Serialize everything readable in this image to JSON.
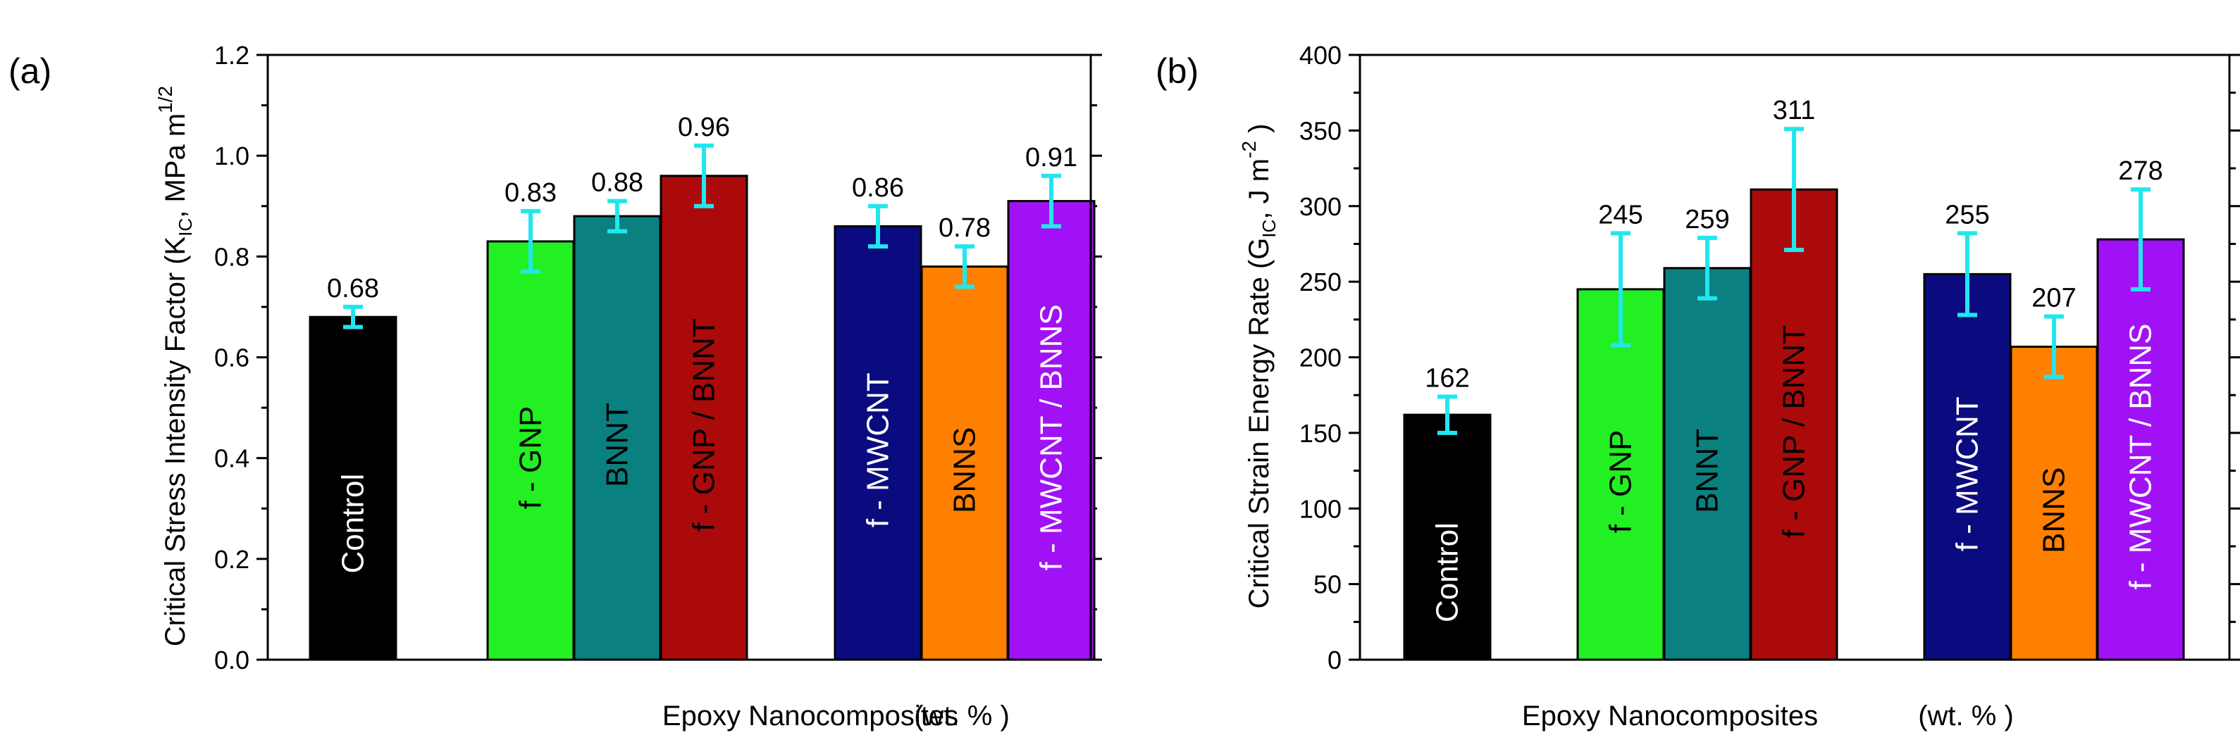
{
  "chart_data": [
    {
      "panel_label": "(a)",
      "type": "bar",
      "title": "",
      "ylabel": {
        "main": "Critical Stress Intensity Factor",
        "sym": "K",
        "sub": "IC",
        "unit": ", MPa",
        "unit2": "m",
        "unit2_sup": "1/2",
        "close": ""
      },
      "xlabel": "Epoxy Nanocomposites",
      "xlabel_unit": "(wt. %  )",
      "ylim": [
        0,
        1.2
      ],
      "yticks": [
        "0.0",
        "0.2",
        "0.4",
        "0.6",
        "0.8",
        "1.0",
        "1.2"
      ],
      "ytick_values": [
        0,
        0.2,
        0.4,
        0.6,
        0.8,
        1.0,
        1.2
      ],
      "bars": [
        {
          "name": "Control",
          "value": 0.68,
          "label": "0.68",
          "error": 0.02,
          "color": "#000000",
          "text_color": "#ffffff",
          "group": 0
        },
        {
          "name": "f - GNP",
          "value": 0.83,
          "label": "0.83",
          "error": 0.06,
          "color": "#22f022",
          "text_color": "#000000",
          "group": 1
        },
        {
          "name": "BNNT",
          "value": 0.88,
          "label": "0.88",
          "error": 0.03,
          "color": "#0b8080",
          "text_color": "#000000",
          "group": 1
        },
        {
          "name": "f - GNP / BNNT",
          "value": 0.96,
          "label": "0.96",
          "error": 0.06,
          "color": "#ab0a0a",
          "text_color": "#000000",
          "group": 1
        },
        {
          "name": "f - MWCNT",
          "value": 0.86,
          "label": "0.86",
          "error": 0.04,
          "color": "#0b0b80",
          "text_color": "#ffffff",
          "group": 2
        },
        {
          "name": "BNNS",
          "value": 0.78,
          "label": "0.78",
          "error": 0.04,
          "color": "#ff8000",
          "text_color": "#000000",
          "group": 2
        },
        {
          "name": "f - MWCNT / BNNS",
          "value": 0.91,
          "label": "0.91",
          "error": 0.05,
          "color": "#a012f5",
          "text_color": "#ffffff",
          "group": 2
        }
      ],
      "error_bar_color": "#22e6ee",
      "grid": false
    },
    {
      "panel_label": "(b)",
      "type": "bar",
      "title": "",
      "ylabel": {
        "main": "Critical Strain Energy Rate",
        "sym": "G",
        "sub": "IC",
        "unit": ",  J m",
        "unit2": "",
        "unit2_sup": "-2",
        "close": ")"
      },
      "xlabel": "Epoxy Nanocomposites",
      "xlabel_unit": "(wt. % )",
      "ylim": [
        0,
        400
      ],
      "yticks": [
        "0",
        "50",
        "100",
        "150",
        "200",
        "250",
        "300",
        "350",
        "400"
      ],
      "ytick_values": [
        0,
        50,
        100,
        150,
        200,
        250,
        300,
        350,
        400
      ],
      "bars": [
        {
          "name": "Control",
          "value": 162,
          "label": "162",
          "error": 12,
          "color": "#000000",
          "text_color": "#ffffff",
          "group": 0
        },
        {
          "name": "f - GNP",
          "value": 245,
          "label": "245",
          "error": 37,
          "color": "#22f022",
          "text_color": "#000000",
          "group": 1
        },
        {
          "name": "BNNT",
          "value": 259,
          "label": "259",
          "error": 20,
          "color": "#0b8080",
          "text_color": "#000000",
          "group": 1
        },
        {
          "name": "f - GNP / BNNT",
          "value": 311,
          "label": "311",
          "error": 40,
          "color": "#ab0a0a",
          "text_color": "#000000",
          "group": 1
        },
        {
          "name": "f - MWCNT",
          "value": 255,
          "label": "255",
          "error": 27,
          "color": "#0b0b80",
          "text_color": "#ffffff",
          "group": 2
        },
        {
          "name": "BNNS",
          "value": 207,
          "label": "207",
          "error": 20,
          "color": "#ff8000",
          "text_color": "#000000",
          "group": 2
        },
        {
          "name": "f - MWCNT / BNNS",
          "value": 278,
          "label": "278",
          "error": 33,
          "color": "#a012f5",
          "text_color": "#ffffff",
          "group": 2
        }
      ],
      "error_bar_color": "#22e6ee",
      "grid": false
    }
  ]
}
